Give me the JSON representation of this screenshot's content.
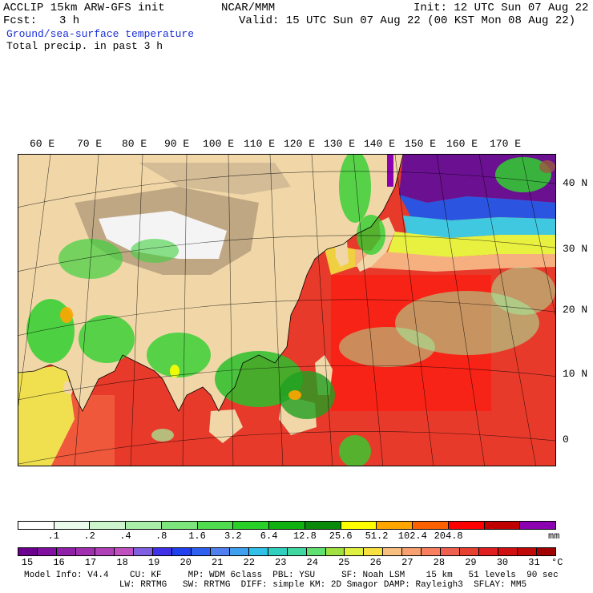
{
  "header": {
    "model_line": "ACCLIP 15km ARW-GFS init",
    "fcst_label": "Fcst:",
    "fcst_value": "3 h",
    "org": "NCAR/MMM",
    "init": "Init: 12 UTC Sun 07 Aug 22",
    "valid": "Valid: 15 UTC Sun 07 Aug 22 (00 KST Mon 08 Aug 22)",
    "field1": "Ground/sea-surface temperature",
    "field2": "Total precip. in past 3 h"
  },
  "map": {
    "lon_labels": [
      "60 E",
      "70 E",
      "80 E",
      "90 E",
      "100 E",
      "110 E",
      "120 E",
      "130 E",
      "140 E",
      "150 E",
      "160 E",
      "170 E"
    ],
    "lat_labels": [
      "40 N",
      "30 N",
      "20 N",
      "10 N",
      "0"
    ],
    "colors": {
      "land": "#f1d7a8",
      "terrain": "#bfa784",
      "snow": "#f4f4f4",
      "ocean_warm": "#e83a2a",
      "ocean_hot": "#ff1010",
      "ocean_mid": "#f06040",
      "cold_purple": "#6a1090",
      "cold_blue": "#2b55e0",
      "cold_cyan": "#40c8e0",
      "cold_yellow": "#f0f040",
      "precip_green": "#30d030",
      "precip_light": "#9ff39f",
      "grid": "#000000"
    }
  },
  "precip_scale": {
    "colors": [
      "#ffffff",
      "#ebfbeb",
      "#cdf5cd",
      "#a9eea9",
      "#7ce67c",
      "#4fdc4f",
      "#28d028",
      "#10b010",
      "#0a8a0a",
      "#ffff00",
      "#ffa500",
      "#ff6000",
      "#ff0000",
      "#c00000",
      "#8b00b0"
    ],
    "ticks": [
      ".1",
      ".2",
      ".4",
      ".8",
      "1.6",
      "3.2",
      "6.4",
      "12.8",
      "25.6",
      "51.2",
      "102.4",
      "204.8"
    ],
    "unit": "mm"
  },
  "temp_scale": {
    "colors": [
      "#6b0090",
      "#80109f",
      "#9020a8",
      "#a030b0",
      "#b040b8",
      "#c050c0",
      "#8060e0",
      "#4030e8",
      "#2040f0",
      "#3060f0",
      "#5080f0",
      "#40a0f0",
      "#30c0e8",
      "#30d0c0",
      "#40d8a0",
      "#60e070",
      "#a0e040",
      "#e0f040",
      "#f8e040",
      "#f8c080",
      "#f8a070",
      "#f88060",
      "#f06050",
      "#e84030",
      "#e02020",
      "#d01010",
      "#c00808",
      "#a00000"
    ],
    "ticks": [
      "15",
      "16",
      "17",
      "18",
      "19",
      "20",
      "21",
      "22",
      "23",
      "24",
      "25",
      "26",
      "27",
      "28",
      "29",
      "30",
      "31"
    ],
    "unit": "°C"
  },
  "footer": {
    "line1": "Model Info: V4.4    CU: KF     MP: WDM 6class  PBL: YSU     SF: Noah LSM    15 km   51 levels  90 sec",
    "line2": "                  LW: RRTMG   SW: RRTMG  DIFF: simple KM: 2D Smagor DAMP: Rayleigh3  SFLAY: MM5"
  }
}
